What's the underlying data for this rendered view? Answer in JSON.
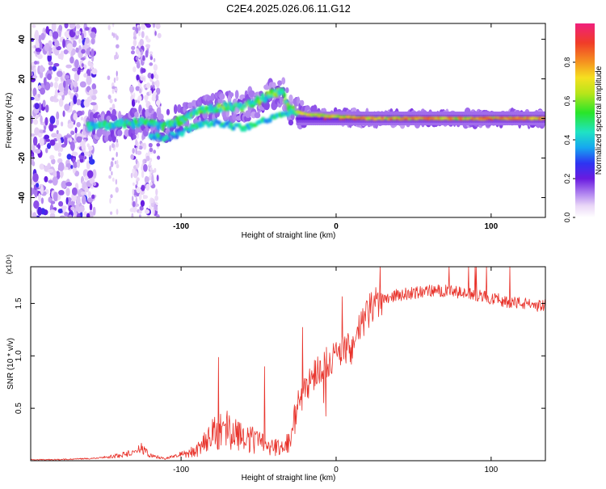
{
  "title": "C2E4.2025.026.06.11.G12",
  "chart_data": [
    {
      "type": "heatmap",
      "xlabel": "Height of straight line (km)",
      "ylabel": "Frequency (Hz)",
      "xlim": [
        -197,
        135
      ],
      "ylim": [
        -50,
        48
      ],
      "x_ticks": [
        -100,
        0,
        100
      ],
      "y_ticks": [
        -40,
        -20,
        0,
        20,
        40
      ],
      "colorbar": {
        "label": "Normalized spectral amplitude",
        "range": [
          0,
          1
        ],
        "ticks": [
          0,
          0.2,
          0.4,
          0.6,
          0.8
        ]
      },
      "ridge": {
        "description_points": [
          [
            -155,
            -4
          ],
          [
            -140,
            -3
          ],
          [
            -125,
            -2
          ],
          [
            -110,
            -4
          ],
          [
            -100,
            -1
          ],
          [
            -90,
            3
          ],
          [
            -80,
            5
          ],
          [
            -70,
            6
          ],
          [
            -60,
            6
          ],
          [
            -52,
            8
          ],
          [
            -45,
            11
          ],
          [
            -40,
            13
          ],
          [
            -35,
            14
          ],
          [
            -30,
            5
          ],
          [
            -20,
            2
          ],
          [
            0,
            1
          ],
          [
            20,
            0
          ],
          [
            60,
            0
          ],
          [
            100,
            0
          ],
          [
            135,
            0
          ]
        ],
        "lower_branch": [
          [
            -120,
            -8
          ],
          [
            -110,
            -10
          ],
          [
            -100,
            -7
          ],
          [
            -90,
            -4
          ],
          [
            -80,
            -2
          ],
          [
            -70,
            -3
          ],
          [
            -60,
            -5
          ],
          [
            -50,
            -2
          ],
          [
            -40,
            1
          ],
          [
            -30,
            3
          ]
        ]
      }
    },
    {
      "type": "line",
      "xlabel": "Height of straight line (km)",
      "ylabel": "SNR (10 * v/v)",
      "y_multiplier": "(x10⁴)",
      "xlim": [
        -197,
        135
      ],
      "ylim": [
        0,
        1.85
      ],
      "x_ticks": [
        -100,
        0,
        100
      ],
      "y_ticks": [
        0.5,
        1.0,
        1.5
      ],
      "color": "#e8322a",
      "series": [
        {
          "x": [
            -197,
            -180,
            -160,
            -150,
            -140,
            -130,
            -125,
            -120,
            -110,
            -100,
            -90,
            -85,
            -80,
            -75,
            -70,
            -65,
            -60,
            -55,
            -50,
            -45,
            -40,
            -35,
            -30,
            -25,
            -20,
            -15,
            -10,
            -5,
            0,
            5,
            10,
            15,
            20,
            25,
            30,
            40,
            50,
            60,
            70,
            80,
            90,
            100,
            110,
            120,
            130,
            135
          ],
          "y": [
            0.01,
            0.01,
            0.02,
            0.03,
            0.05,
            0.08,
            0.12,
            0.05,
            0.02,
            0.06,
            0.12,
            0.2,
            0.28,
            0.34,
            0.36,
            0.32,
            0.28,
            0.24,
            0.2,
            0.18,
            0.16,
            0.15,
            0.2,
            0.5,
            0.72,
            0.8,
            0.9,
            0.95,
            1.0,
            1.05,
            1.08,
            1.25,
            1.4,
            1.5,
            1.55,
            1.58,
            1.6,
            1.62,
            1.62,
            1.6,
            1.58,
            1.55,
            1.52,
            1.5,
            1.48,
            1.48
          ]
        }
      ]
    }
  ]
}
